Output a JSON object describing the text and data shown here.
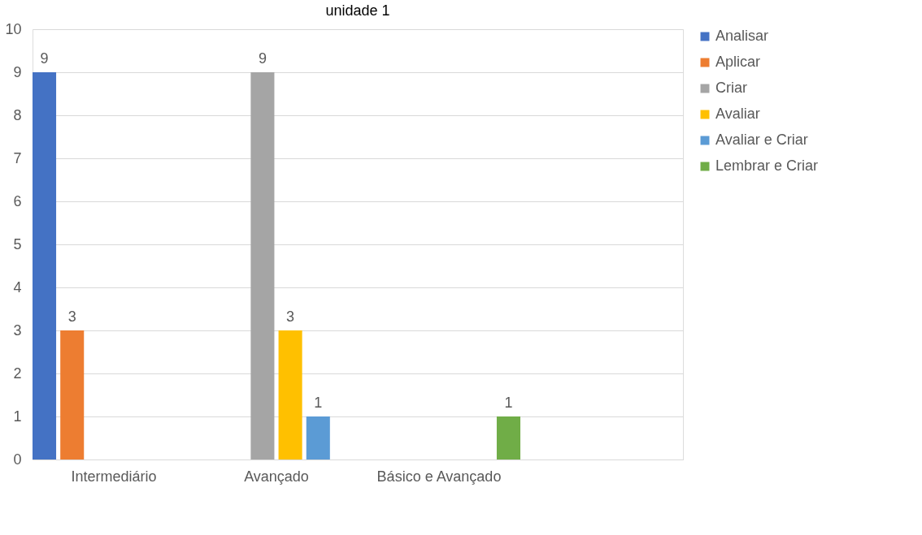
{
  "chart_data": {
    "type": "bar",
    "title": "unidade 1",
    "categories": [
      "Intermediário",
      "Avançado",
      "Básico e Avançado",
      null
    ],
    "series": [
      {
        "name": "Analisar",
        "color": "#4472c4",
        "values": [
          9,
          null,
          null,
          null
        ]
      },
      {
        "name": "Aplicar",
        "color": "#ed7d31",
        "values": [
          3,
          null,
          null,
          null
        ]
      },
      {
        "name": "Criar",
        "color": "#a5a5a5",
        "values": [
          null,
          9,
          null,
          null
        ]
      },
      {
        "name": "Avaliar",
        "color": "#ffc000",
        "values": [
          null,
          3,
          null,
          null
        ]
      },
      {
        "name": "Avaliar e Criar",
        "color": "#5b9bd5",
        "values": [
          null,
          1,
          null,
          null
        ]
      },
      {
        "name": "Lembrar e Criar",
        "color": "#70ad47",
        "values": [
          null,
          null,
          1,
          null
        ]
      }
    ],
    "ylim": [
      0,
      10
    ],
    "yticks": [
      0,
      1,
      2,
      3,
      4,
      5,
      6,
      7,
      8,
      9,
      10
    ],
    "grid": "y",
    "legend": "right",
    "data_labels": true
  }
}
